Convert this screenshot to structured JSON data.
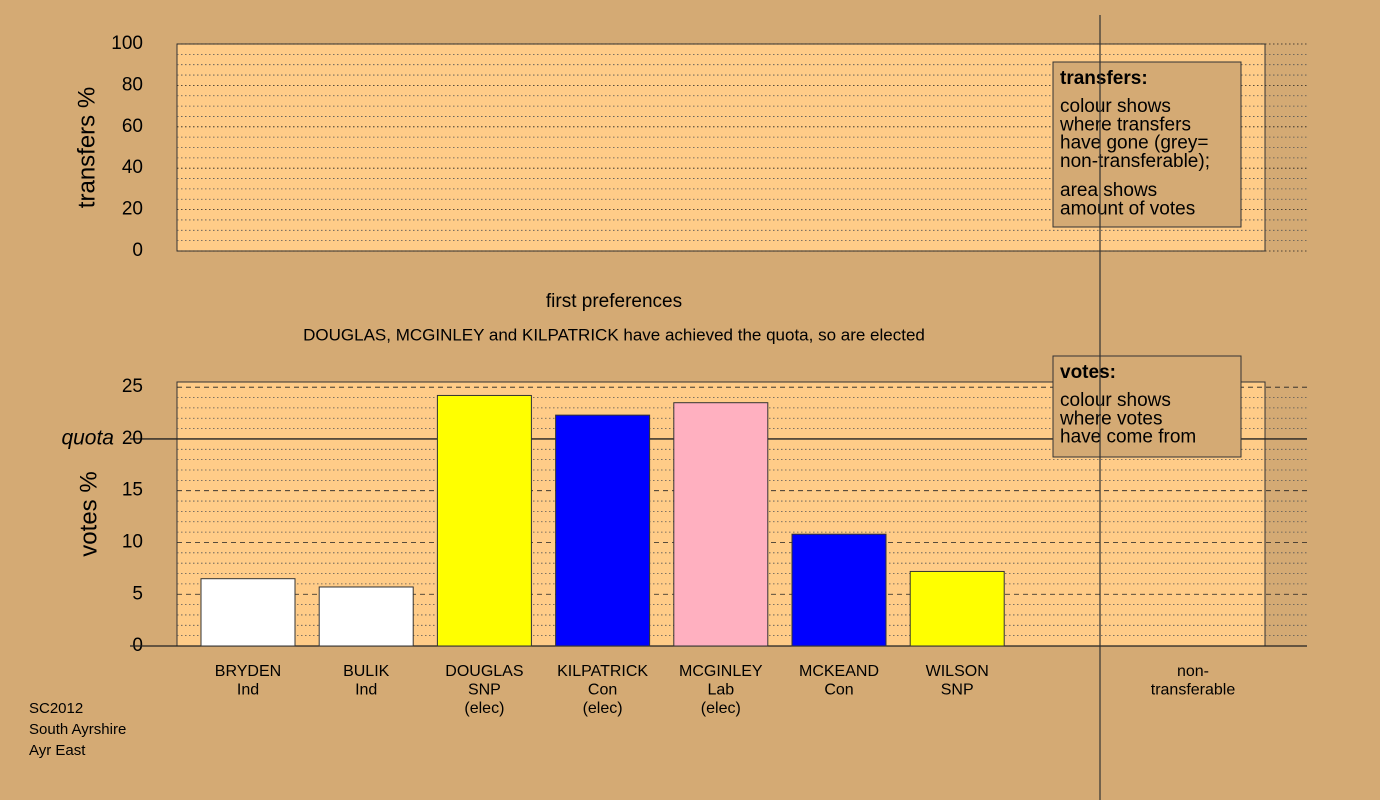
{
  "chart_data": [
    {
      "type": "bar",
      "ylabel": "transfers %",
      "ylim": [
        0,
        100
      ],
      "yticks": [
        0,
        20,
        40,
        60,
        80,
        100
      ],
      "minor_step": 5,
      "grid": "dotted",
      "categories": [],
      "values": [],
      "legend": {
        "title": "transfers:",
        "paragraphs": [
          [
            "colour shows",
            "where transfers",
            "have gone (grey=",
            "non-transferable);"
          ],
          [
            "area shows",
            "amount of votes"
          ]
        ]
      }
    },
    {
      "type": "bar",
      "title": "first preferences",
      "subtitle": "DOUGLAS, MCGINLEY and KILPATRICK have achieved the quota, so are elected",
      "ylabel": "votes %",
      "ylim": [
        0,
        25.5
      ],
      "yticks": [
        0,
        5,
        10,
        15,
        20,
        25
      ],
      "minor_step": 1,
      "grid": "dashed",
      "quota": {
        "value": 20,
        "label": "quota"
      },
      "categories": [
        [
          "BRYDEN",
          "Ind"
        ],
        [
          "BULIK",
          "Ind"
        ],
        [
          "DOUGLAS",
          "SNP",
          "(elec)"
        ],
        [
          "KILPATRICK",
          "Con",
          "(elec)"
        ],
        [
          "MCGINLEY",
          "Lab",
          "(elec)"
        ],
        [
          "MCKEAND",
          "Con"
        ],
        [
          "WILSON",
          "SNP"
        ],
        [
          "non-",
          "transferable"
        ]
      ],
      "values": [
        6.5,
        5.7,
        24.2,
        22.3,
        23.5,
        10.8,
        7.2,
        null
      ],
      "colors": [
        "#ffffff",
        "#ffffff",
        "#ffff00",
        "#0000ff",
        "#ffb0c0",
        "#0000ff",
        "#ffff00",
        null
      ],
      "legend": {
        "title": "votes:",
        "paragraphs": [
          [
            "colour shows",
            "where votes",
            "have come from"
          ]
        ]
      }
    }
  ],
  "footer": [
    "SC2012",
    "South Ayrshire",
    "Ayr East"
  ]
}
